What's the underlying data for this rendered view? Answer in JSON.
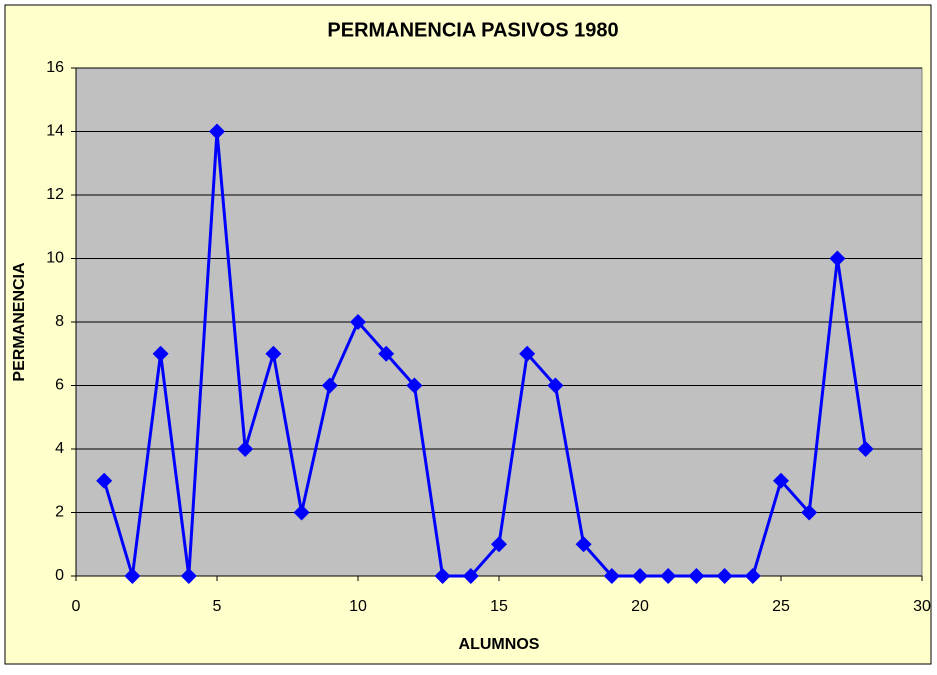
{
  "chart_data": {
    "type": "line",
    "title": "PERMANENCIA PASIVOS 1980",
    "x_label": "ALUMNOS",
    "y_label": "PERMANENCIA",
    "x": [
      1,
      2,
      3,
      4,
      5,
      6,
      7,
      8,
      9,
      10,
      11,
      12,
      13,
      14,
      15,
      16,
      17,
      18,
      19,
      20,
      21,
      22,
      23,
      24,
      25,
      26,
      27,
      28
    ],
    "series": [
      {
        "name": "PERMANENCIA",
        "color": "#0000ff",
        "values": [
          3,
          0,
          7,
          0,
          14,
          4,
          7,
          2,
          6,
          8,
          7,
          6,
          0,
          0,
          1,
          7,
          6,
          1,
          0,
          0,
          0,
          0,
          0,
          0,
          3,
          2,
          10,
          4
        ]
      }
    ],
    "xlim": [
      0,
      30
    ],
    "xticks": [
      0,
      5,
      10,
      15,
      20,
      25,
      30
    ],
    "ylim": [
      0,
      16
    ],
    "yticks": [
      0,
      2,
      4,
      6,
      8,
      10,
      12,
      14,
      16
    ],
    "grid": true
  }
}
